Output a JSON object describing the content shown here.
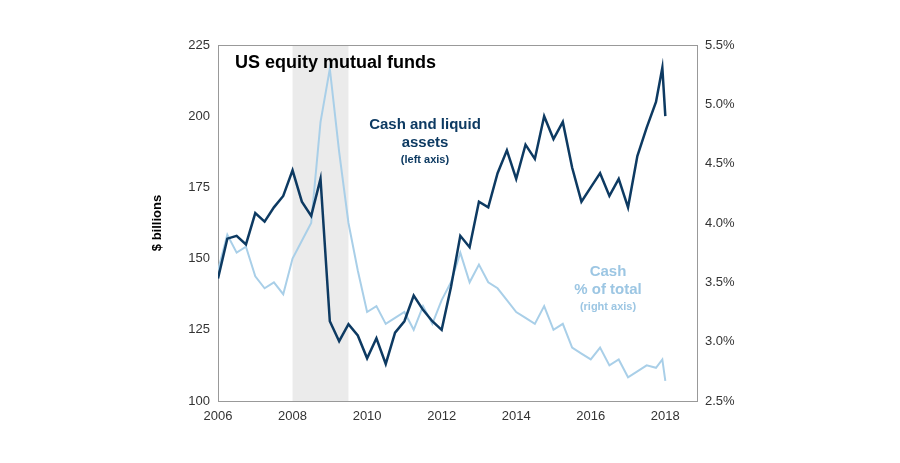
{
  "chart_data": {
    "type": "line",
    "title": "US equity mutual funds",
    "y_label": "$ billions",
    "x": [
      2006.0,
      2006.25,
      2006.5,
      2006.75,
      2007.0,
      2007.25,
      2007.5,
      2007.75,
      2008.0,
      2008.25,
      2008.5,
      2008.75,
      2009.0,
      2009.25,
      2009.5,
      2009.75,
      2010.0,
      2010.25,
      2010.5,
      2010.75,
      2011.0,
      2011.25,
      2011.5,
      2011.75,
      2012.0,
      2012.25,
      2012.5,
      2012.75,
      2013.0,
      2013.25,
      2013.5,
      2013.75,
      2014.0,
      2014.25,
      2014.5,
      2014.75,
      2015.0,
      2015.25,
      2015.5,
      2015.75,
      2016.0,
      2016.25,
      2016.5,
      2016.75,
      2017.0,
      2017.25,
      2017.5,
      2017.75,
      2017.92,
      2018.0
    ],
    "series": [
      {
        "name": "Cash and liquid assets",
        "note": "(left axis)",
        "color": "#0d3a62",
        "axis": "y",
        "values": [
          143,
          157,
          158,
          155,
          166,
          163,
          168,
          172,
          181,
          170,
          165,
          178,
          128,
          121,
          127,
          123,
          115,
          122,
          113,
          124,
          128,
          137,
          132,
          128,
          125,
          140,
          158,
          154,
          170,
          168,
          180,
          188,
          178,
          190,
          185,
          200,
          192,
          198,
          182,
          170,
          175,
          180,
          172,
          178,
          168,
          186,
          196,
          205,
          217,
          200
        ]
      },
      {
        "name": "Cash % of total",
        "note": "(right axis)",
        "color": "#a9cfe8",
        "axis": "y2",
        "values": [
          3.6,
          3.9,
          3.75,
          3.8,
          3.55,
          3.45,
          3.5,
          3.4,
          3.7,
          3.85,
          4.0,
          4.85,
          5.3,
          4.6,
          4.0,
          3.6,
          3.25,
          3.3,
          3.15,
          3.2,
          3.25,
          3.1,
          3.3,
          3.15,
          3.35,
          3.5,
          3.75,
          3.5,
          3.65,
          3.5,
          3.45,
          3.35,
          3.25,
          3.2,
          3.15,
          3.3,
          3.1,
          3.15,
          2.95,
          2.9,
          2.85,
          2.95,
          2.8,
          2.85,
          2.7,
          2.75,
          2.8,
          2.78,
          2.85,
          2.67
        ]
      }
    ],
    "shaded_x": [
      2008.0,
      2009.5
    ],
    "xlim": [
      2006,
      2018.85
    ],
    "xticks": [
      2006,
      2008,
      2010,
      2012,
      2014,
      2016,
      2018
    ],
    "ylim": [
      100,
      225
    ],
    "yticks": [
      100,
      125,
      150,
      175,
      200,
      225
    ],
    "y2lim": [
      2.5,
      5.5
    ],
    "y2ticks": [
      {
        "value": 2.5,
        "label": "2.5%"
      },
      {
        "value": 3.0,
        "label": "3.0%"
      },
      {
        "value": 3.5,
        "label": "3.5%"
      },
      {
        "value": 4.0,
        "label": "4.0%"
      },
      {
        "value": 4.5,
        "label": "4.5%"
      },
      {
        "value": 5.0,
        "label": "5.0%"
      },
      {
        "value": 5.5,
        "label": "5.5%"
      }
    ],
    "grid": false
  }
}
